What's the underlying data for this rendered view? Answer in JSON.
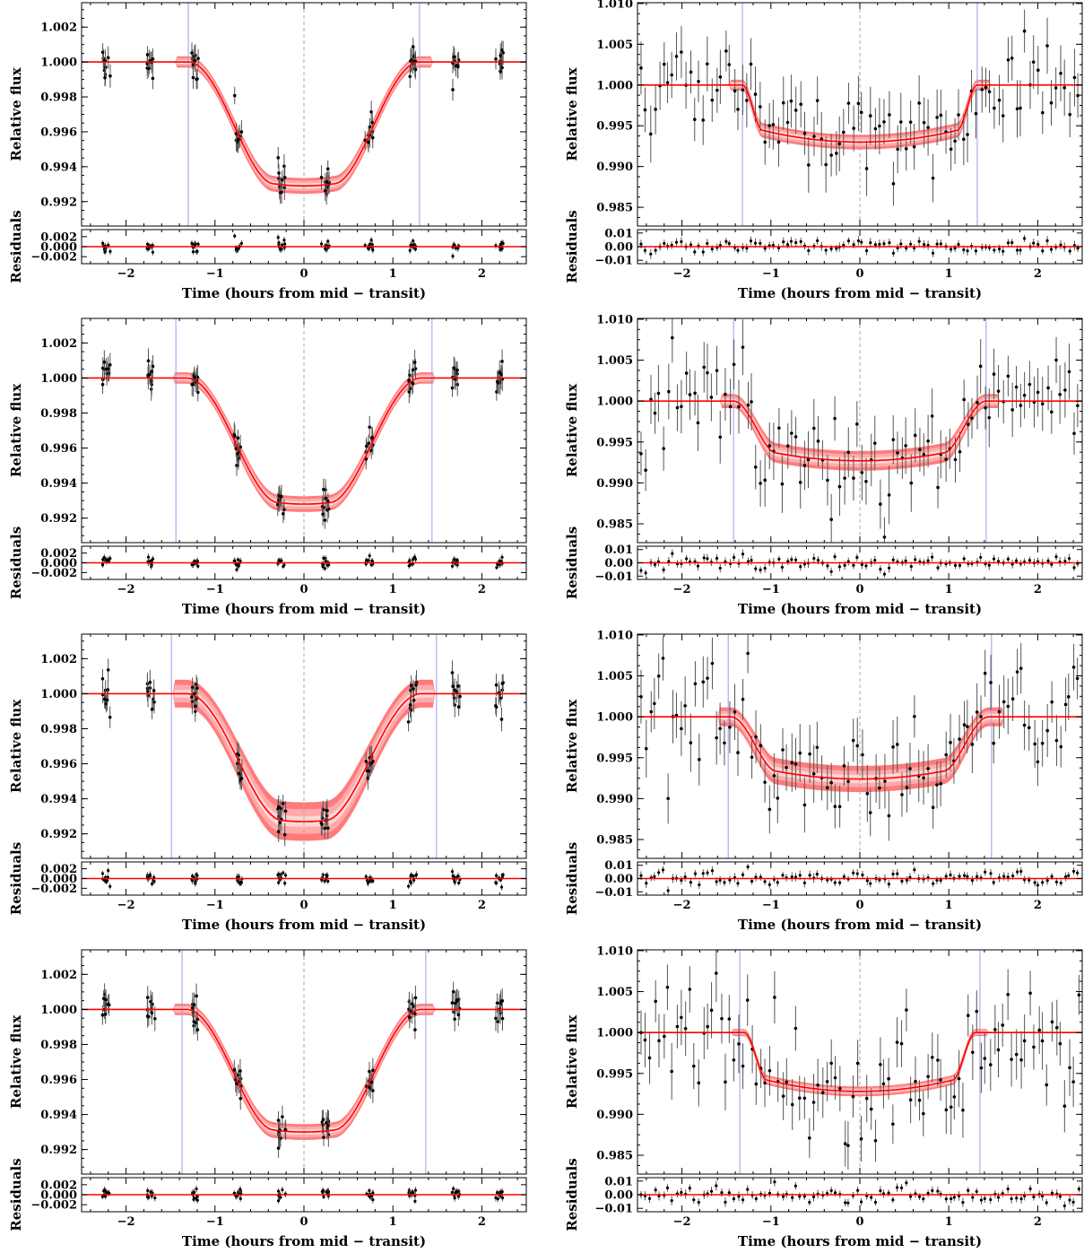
{
  "colors": {
    "model": "#ff0000",
    "band_outer": "#ffd6d6",
    "band_mid": "#ffaaaa",
    "band_inner": "#ff7b7b",
    "edge_lines": "#9b9bf0",
    "midline": "#aaaaaa",
    "points": "#000000",
    "errorbars": "#555555"
  },
  "chart_data": [
    {
      "panel": "row1-left",
      "type": "scatter",
      "xlabel": "Time (hours from mid − transit)",
      "ylabel": "Relative flux",
      "reslabel": "Residuals",
      "xlim": [
        -2.5,
        2.5
      ],
      "ylim": [
        0.9906,
        1.0034
      ],
      "xticks": [
        -2,
        -1,
        0,
        1,
        2
      ],
      "xticklabels": [
        "−2",
        "−1",
        "0",
        "1",
        "2"
      ],
      "yticks": [
        0.992,
        0.994,
        0.996,
        0.998,
        1.0,
        1.002
      ],
      "yticklabels": [
        "0.992",
        "0.994",
        "0.996",
        "0.998",
        "1.000",
        "1.002"
      ],
      "res_ylim": [
        -0.0034,
        0.0034
      ],
      "res_yticks": [
        -0.002,
        0.0,
        0.002
      ],
      "res_yticklabels": [
        "−0.002",
        "0.000",
        "0.002"
      ],
      "model": {
        "depth": 0.0071,
        "t_total": 1.3,
        "t_flat": 0.35,
        "curv": 0.25,
        "band": [
          0.00015,
          0.0003,
          0.00045
        ]
      },
      "edge_lines": [
        -1.3,
        1.3
      ],
      "data": {
        "mode": "clustered",
        "centers": [
          -2.22,
          -1.72,
          -1.23,
          -0.74,
          -0.25,
          0.24,
          0.73,
          1.22,
          1.71,
          2.2
        ],
        "per": 10,
        "spread": 0.045,
        "err": 0.0006,
        "noise": 0.0005,
        "res_scale": 0.0012,
        "seed": 11
      }
    },
    {
      "panel": "row1-right",
      "type": "scatter",
      "xlabel": "Time (hours from mid − transit)",
      "ylabel": "Relative flux",
      "reslabel": "Residuals",
      "xlim": [
        -2.5,
        2.5
      ],
      "ylim": [
        0.9827,
        1.0101
      ],
      "xticks": [
        -2,
        -1,
        0,
        1,
        2
      ],
      "xticklabels": [
        "−2",
        "−1",
        "0",
        "1",
        "2"
      ],
      "yticks": [
        0.985,
        0.99,
        0.995,
        1.0,
        1.005,
        1.01
      ],
      "yticklabels": [
        "0.985",
        "0.990",
        "0.995",
        "1.000",
        "1.005",
        "1.010"
      ],
      "res_ylim": [
        -0.0125,
        0.0125
      ],
      "res_yticks": [
        -0.01,
        0.0,
        0.01
      ],
      "res_yticklabels": [
        "−0.01",
        "0.00",
        "0.01"
      ],
      "model": {
        "depth": 0.007,
        "t_total": 1.32,
        "t_flat": 1.1,
        "curv": 0.3,
        "band": [
          0.0003,
          0.0006,
          0.0009
        ]
      },
      "edge_lines": [
        -1.32,
        1.32
      ],
      "data": {
        "mode": "uniform",
        "n": 100,
        "err": 0.003,
        "noise": 0.0033,
        "res_scale": 0.003,
        "seed": 21
      }
    },
    {
      "panel": "row2-left",
      "type": "scatter",
      "xlabel": "Time (hours from mid − transit)",
      "ylabel": "Relative flux",
      "reslabel": "Residuals",
      "xlim": [
        -2.5,
        2.5
      ],
      "ylim": [
        0.9906,
        1.0034
      ],
      "xticks": [
        -2,
        -1,
        0,
        1,
        2
      ],
      "xticklabels": [
        "−2",
        "−1",
        "0",
        "1",
        "2"
      ],
      "yticks": [
        0.992,
        0.994,
        0.996,
        0.998,
        1.0,
        1.002
      ],
      "yticklabels": [
        "0.992",
        "0.994",
        "0.996",
        "0.998",
        "1.000",
        "1.002"
      ],
      "res_ylim": [
        -0.0034,
        0.0034
      ],
      "res_yticks": [
        -0.002,
        0.0,
        0.002
      ],
      "res_yticklabels": [
        "−0.002",
        "0.000",
        "0.002"
      ],
      "model": {
        "depth": 0.0072,
        "t_total": 1.32,
        "t_flat": 0.3,
        "curv": 0.25,
        "band": [
          0.00015,
          0.0003,
          0.00045
        ]
      },
      "edge_lines": [
        -1.44,
        1.44
      ],
      "data": {
        "mode": "clustered",
        "centers": [
          -2.22,
          -1.72,
          -1.23,
          -0.74,
          -0.25,
          0.24,
          0.73,
          1.22,
          1.71,
          2.2
        ],
        "per": 10,
        "spread": 0.045,
        "err": 0.0006,
        "noise": 0.0005,
        "res_scale": 0.0012,
        "seed": 11
      }
    },
    {
      "panel": "row2-right",
      "type": "scatter",
      "xlabel": "Time (hours from mid − transit)",
      "ylabel": "Relative flux",
      "reslabel": "Residuals",
      "xlim": [
        -2.5,
        2.5
      ],
      "ylim": [
        0.9827,
        1.0101
      ],
      "xticks": [
        -2,
        -1,
        0,
        1,
        2
      ],
      "xticklabels": [
        "−2",
        "−1",
        "0",
        "1",
        "2"
      ],
      "yticks": [
        0.985,
        0.99,
        0.995,
        1.0,
        1.005,
        1.01
      ],
      "yticklabels": [
        "0.985",
        "0.990",
        "0.995",
        "1.000",
        "1.005",
        "1.010"
      ],
      "res_ylim": [
        -0.0125,
        0.0125
      ],
      "res_yticks": [
        -0.01,
        0.0,
        0.01
      ],
      "res_yticklabels": [
        "−0.01",
        "0.00",
        "0.01"
      ],
      "model": {
        "depth": 0.0073,
        "t_total": 1.42,
        "t_flat": 0.95,
        "curv": 0.3,
        "band": [
          0.0004,
          0.0008,
          0.0012
        ]
      },
      "edge_lines": [
        -1.42,
        1.42
      ],
      "data": {
        "mode": "uniform",
        "n": 100,
        "err": 0.003,
        "noise": 0.0033,
        "res_scale": 0.003,
        "seed": 21
      }
    },
    {
      "panel": "row3-left",
      "type": "scatter",
      "xlabel": "Time (hours from mid − transit)",
      "ylabel": "Relative flux",
      "reslabel": "Residuals",
      "xlim": [
        -2.5,
        2.5
      ],
      "ylim": [
        0.9906,
        1.0034
      ],
      "xticks": [
        -2,
        -1,
        0,
        1,
        2
      ],
      "xticklabels": [
        "−2",
        "−1",
        "0",
        "1",
        "2"
      ],
      "yticks": [
        0.992,
        0.994,
        0.996,
        0.998,
        1.0,
        1.002
      ],
      "yticklabels": [
        "0.992",
        "0.994",
        "0.996",
        "0.998",
        "1.000",
        "1.002"
      ],
      "res_ylim": [
        -0.0034,
        0.0034
      ],
      "res_yticks": [
        -0.002,
        0.0,
        0.002
      ],
      "res_yticklabels": [
        "−0.002",
        "0.000",
        "0.002"
      ],
      "model": {
        "depth": 0.0073,
        "t_total": 1.32,
        "t_flat": 0.25,
        "curv": 0.25,
        "band": [
          0.0003,
          0.0007,
          0.0011
        ]
      },
      "edge_lines": [
        -1.49,
        1.49
      ],
      "data": {
        "mode": "clustered",
        "centers": [
          -2.22,
          -1.72,
          -1.23,
          -0.74,
          -0.25,
          0.24,
          0.73,
          1.22,
          1.71,
          2.2
        ],
        "per": 10,
        "spread": 0.045,
        "err": 0.0006,
        "noise": 0.0005,
        "res_scale": 0.0012,
        "seed": 11
      }
    },
    {
      "panel": "row3-right",
      "type": "scatter",
      "xlabel": "Time (hours from mid − transit)",
      "ylabel": "Relative flux",
      "reslabel": "Residuals",
      "xlim": [
        -2.5,
        2.5
      ],
      "ylim": [
        0.9827,
        1.0101
      ],
      "xticks": [
        -2,
        -1,
        0,
        1,
        2
      ],
      "xticklabels": [
        "−2",
        "−1",
        "0",
        "1",
        "2"
      ],
      "yticks": [
        0.985,
        0.99,
        0.995,
        1.0,
        1.005,
        1.01
      ],
      "yticklabels": [
        "0.985",
        "0.990",
        "0.995",
        "1.000",
        "1.005",
        "1.010"
      ],
      "res_ylim": [
        -0.0125,
        0.0125
      ],
      "res_yticks": [
        -0.01,
        0.0,
        0.01
      ],
      "res_yticklabels": [
        "−0.01",
        "0.00",
        "0.01"
      ],
      "model": {
        "depth": 0.0076,
        "t_total": 1.45,
        "t_flat": 0.95,
        "curv": 0.3,
        "band": [
          0.0005,
          0.001,
          0.0016
        ]
      },
      "edge_lines": [
        -1.48,
        1.48
      ],
      "data": {
        "mode": "uniform",
        "n": 100,
        "err": 0.003,
        "noise": 0.0033,
        "res_scale": 0.003,
        "seed": 21
      }
    },
    {
      "panel": "row4-left",
      "type": "scatter",
      "xlabel": "Time (hours from mid − transit)",
      "ylabel": "Relative flux",
      "reslabel": "Residuals",
      "xlim": [
        -2.5,
        2.5
      ],
      "ylim": [
        0.9906,
        1.0034
      ],
      "xticks": [
        -2,
        -1,
        0,
        1,
        2
      ],
      "xticklabels": [
        "−2",
        "−1",
        "0",
        "1",
        "2"
      ],
      "yticks": [
        0.992,
        0.994,
        0.996,
        0.998,
        1.0,
        1.002
      ],
      "yticklabels": [
        "0.992",
        "0.994",
        "0.996",
        "0.998",
        "1.000",
        "1.002"
      ],
      "res_ylim": [
        -0.0034,
        0.0034
      ],
      "res_yticks": [
        -0.002,
        0.0,
        0.002
      ],
      "res_yticklabels": [
        "−0.002",
        "0.000",
        "0.002"
      ],
      "model": {
        "depth": 0.007,
        "t_total": 1.32,
        "t_flat": 0.35,
        "curv": 0.25,
        "band": [
          0.00015,
          0.0003,
          0.00045
        ]
      },
      "edge_lines": [
        -1.37,
        1.37
      ],
      "data": {
        "mode": "clustered",
        "centers": [
          -2.22,
          -1.72,
          -1.23,
          -0.74,
          -0.25,
          0.24,
          0.73,
          1.22,
          1.71,
          2.2
        ],
        "per": 10,
        "spread": 0.045,
        "err": 0.0006,
        "noise": 0.0005,
        "res_scale": 0.0012,
        "seed": 11
      }
    },
    {
      "panel": "row4-right",
      "type": "scatter",
      "xlabel": "Time (hours from mid − transit)",
      "ylabel": "Relative flux",
      "reslabel": "Residuals",
      "xlim": [
        -2.5,
        2.5
      ],
      "ylim": [
        0.9827,
        1.0101
      ],
      "xticks": [
        -2,
        -1,
        0,
        1,
        2
      ],
      "xticklabels": [
        "−2",
        "−1",
        "0",
        "1",
        "2"
      ],
      "yticks": [
        0.985,
        0.99,
        0.995,
        1.0,
        1.005,
        1.01
      ],
      "yticklabels": [
        "0.985",
        "0.990",
        "0.995",
        "1.000",
        "1.005",
        "1.010"
      ],
      "res_ylim": [
        -0.0125,
        0.0125
      ],
      "res_yticks": [
        -0.01,
        0.0,
        0.01
      ],
      "res_yticklabels": [
        "−0.01",
        "0.00",
        "0.01"
      ],
      "model": {
        "depth": 0.0072,
        "t_total": 1.3,
        "t_flat": 1.05,
        "curv": 0.3,
        "band": [
          0.0002,
          0.0004,
          0.0006
        ]
      },
      "edge_lines": [
        -1.35,
        1.35
      ],
      "data": {
        "mode": "uniform",
        "n": 100,
        "err": 0.003,
        "noise": 0.0033,
        "res_scale": 0.003,
        "seed": 21
      }
    }
  ]
}
